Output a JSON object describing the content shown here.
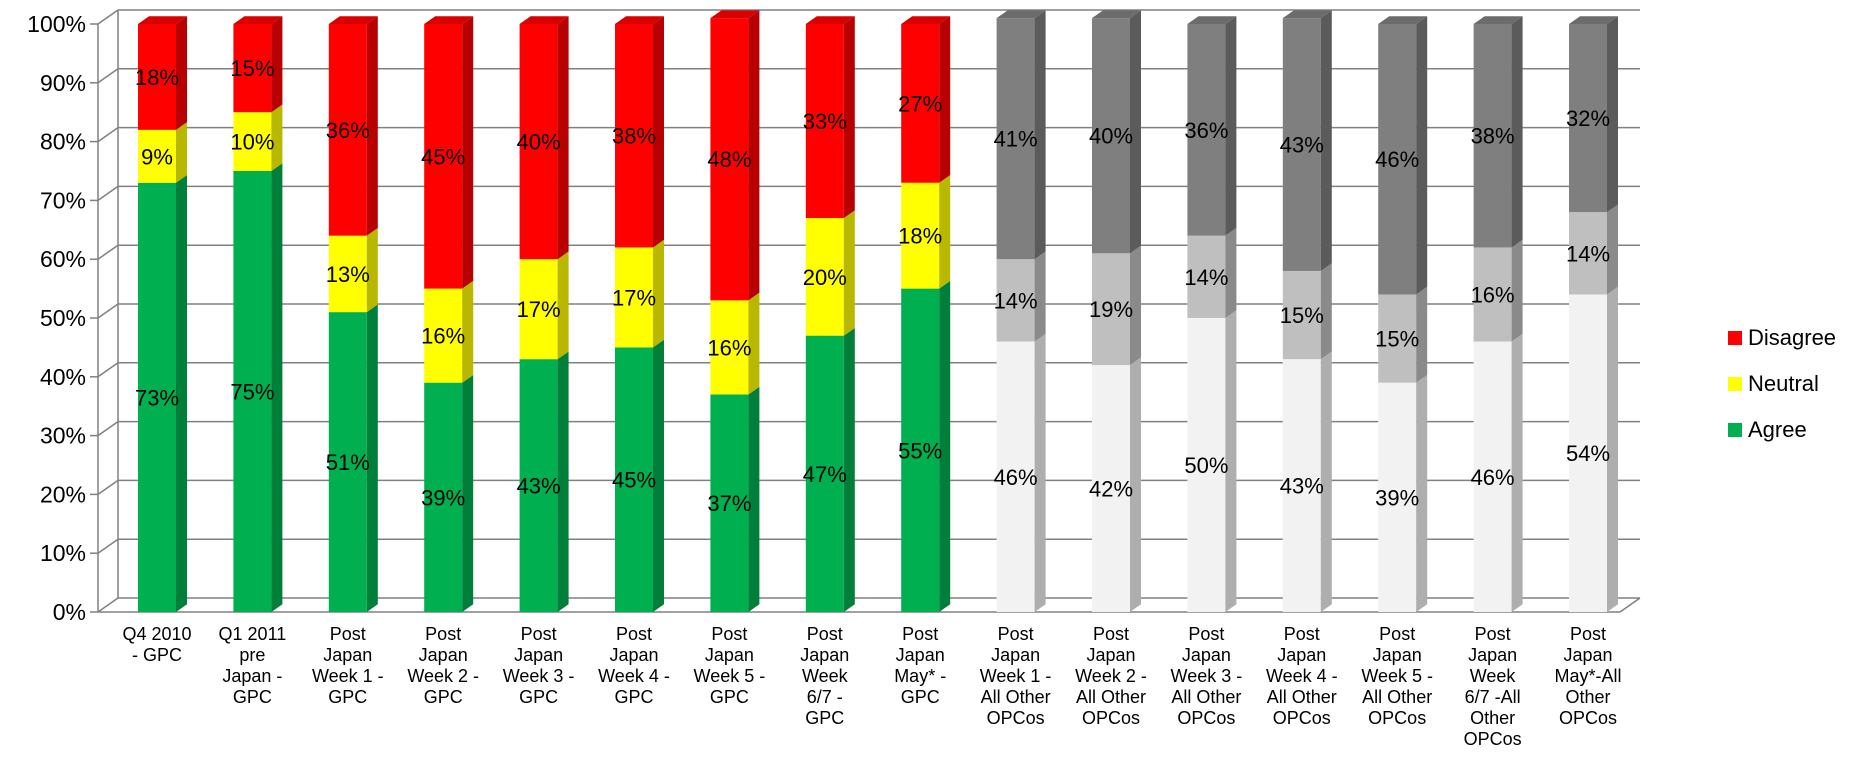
{
  "chart_data": {
    "type": "bar",
    "stacked": true,
    "percent_stacked": true,
    "three_d": true,
    "y_ticks": [
      "0%",
      "10%",
      "20%",
      "30%",
      "40%",
      "50%",
      "60%",
      "70%",
      "80%",
      "90%",
      "100%"
    ],
    "ylim": [
      0,
      100
    ],
    "grid": true,
    "legend_position": "right",
    "categories": [
      "Q4 2010 - GPC",
      "Q1 2011 pre Japan - GPC",
      "Post Japan Week 1 - GPC",
      "Post Japan Week 2 - GPC",
      "Post Japan Week 3 - GPC",
      "Post Japan Week 4 - GPC",
      "Post Japan Week 5 - GPC",
      "Post Japan Week 6/7 - GPC",
      "Post Japan May* - GPC",
      "Post Japan Week 1 - All Other OPCos",
      "Post Japan Week 2 - All Other OPCos",
      "Post Japan Week 3 - All Other OPCos",
      "Post Japan Week 4 - All Other OPCos",
      "Post Japan Week 5 - All Other OPCos",
      "Post Japan Week 6/7 -All Other OPCos",
      "Post Japan May*-All Other OPCos"
    ],
    "category_lines": [
      [
        "Q4 2010",
        "- GPC"
      ],
      [
        "Q1 2011",
        "pre",
        "Japan -",
        "GPC"
      ],
      [
        "Post",
        "Japan",
        "Week 1 -",
        "GPC"
      ],
      [
        "Post",
        "Japan",
        "Week 2 -",
        "GPC"
      ],
      [
        "Post",
        "Japan",
        "Week 3 -",
        "GPC"
      ],
      [
        "Post",
        "Japan",
        "Week 4 -",
        "GPC"
      ],
      [
        "Post",
        "Japan",
        "Week 5 -",
        "GPC"
      ],
      [
        "Post",
        "Japan",
        "Week",
        "6/7 -",
        "GPC"
      ],
      [
        "Post",
        "Japan",
        "May* -",
        "GPC"
      ],
      [
        "Post",
        "Japan",
        "Week 1 -",
        "All Other",
        "OPCos"
      ],
      [
        "Post",
        "Japan",
        "Week 2 -",
        "All Other",
        "OPCos"
      ],
      [
        "Post",
        "Japan",
        "Week 3 -",
        "All Other",
        "OPCos"
      ],
      [
        "Post",
        "Japan",
        "Week 4 -",
        "All Other",
        "OPCos"
      ],
      [
        "Post",
        "Japan",
        "Week 5 -",
        "All Other",
        "OPCos"
      ],
      [
        "Post",
        "Japan",
        "Week",
        "6/7 -All",
        "Other",
        "OPCos"
      ],
      [
        "Post",
        "Japan",
        "May*-All",
        "Other",
        "OPCos"
      ]
    ],
    "series": [
      {
        "name": "Agree",
        "values": [
          73,
          75,
          51,
          39,
          43,
          45,
          37,
          47,
          55,
          46,
          42,
          50,
          43,
          39,
          46,
          54
        ],
        "labels": [
          "73%",
          "75%",
          "51%",
          "39%",
          "43%",
          "45%",
          "37%",
          "47%",
          "55%",
          "46%",
          "42%",
          "50%",
          "43%",
          "39%",
          "46%",
          "54%"
        ]
      },
      {
        "name": "Neutral",
        "values": [
          9,
          10,
          13,
          16,
          17,
          17,
          16,
          20,
          18,
          14,
          19,
          14,
          15,
          15,
          16,
          14
        ],
        "labels": [
          "9%",
          "10%",
          "13%",
          "16%",
          "17%",
          "17%",
          "16%",
          "20%",
          "18%",
          "14%",
          "19%",
          "14%",
          "15%",
          "15%",
          "16%",
          "14%"
        ]
      },
      {
        "name": "Disagree",
        "values": [
          18,
          15,
          36,
          45,
          40,
          38,
          48,
          33,
          27,
          41,
          40,
          36,
          43,
          46,
          38,
          32
        ],
        "labels": [
          "18%",
          "15%",
          "36%",
          "45%",
          "40%",
          "38%",
          "48%",
          "33%",
          "27%",
          "41%",
          "40%",
          "36%",
          "43%",
          "46%",
          "38%",
          "32%"
        ]
      }
    ],
    "colors": {
      "agree": "#00b050",
      "neutral": "#ffff00",
      "disagree": "#ff0000",
      "grey_agree": "#f2f2f2",
      "grey_neutral": "#bfbfbf",
      "grey_disagree": "#7f7f7f",
      "grid": "#808080"
    },
    "grey_from_index": 9,
    "legend": [
      {
        "label": "Disagree",
        "color": "#ff0000"
      },
      {
        "label": "Neutral",
        "color": "#ffff00"
      },
      {
        "label": "Agree",
        "color": "#00b050"
      }
    ]
  }
}
